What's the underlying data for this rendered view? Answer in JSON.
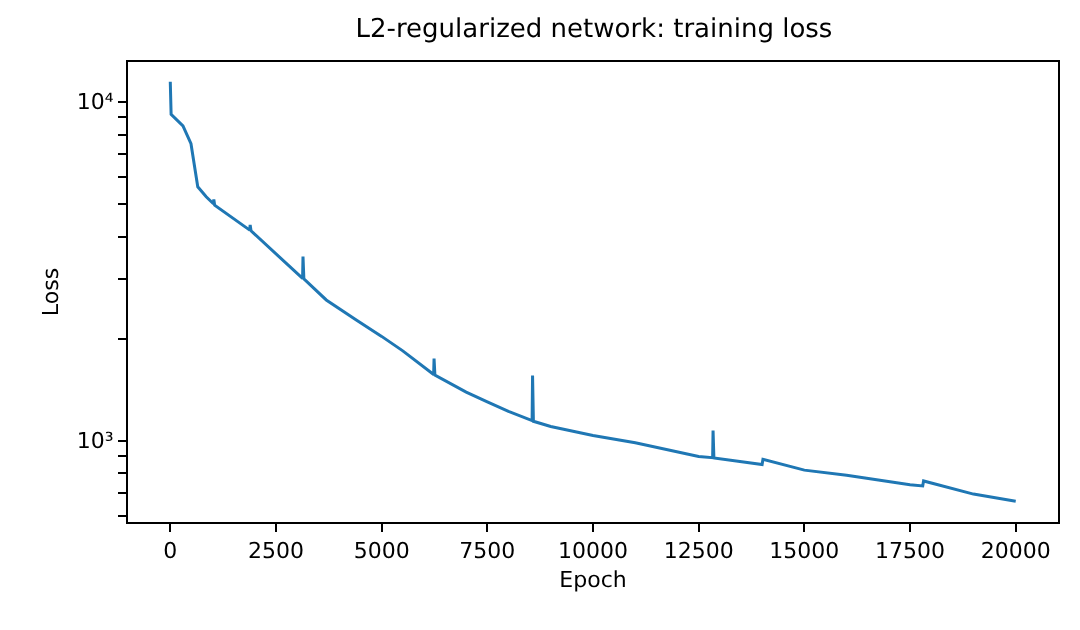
{
  "chart_data": {
    "type": "line",
    "title": "L2-regularized network: training loss",
    "xlabel": "Epoch",
    "ylabel": "Loss",
    "series": [
      {
        "color": "#1f77b4",
        "x": [
          0,
          20,
          300,
          490,
          650,
          850,
          1020,
          1030,
          1050,
          1880,
          1890,
          1910,
          3130,
          3140,
          3160,
          3690,
          4400,
          5000,
          5500,
          6230,
          6240,
          6260,
          7000,
          7500,
          8000,
          8560,
          8570,
          8590,
          9000,
          10000,
          11000,
          12500,
          12830,
          12840,
          12860,
          14000,
          14020,
          15000,
          16000,
          17500,
          17800,
          17820,
          19000,
          20000
        ],
        "values": [
          11450,
          9180,
          8490,
          7520,
          5610,
          5240,
          5000,
          5150,
          4950,
          4180,
          4330,
          4160,
          3010,
          3490,
          3000,
          2600,
          2270,
          2030,
          1840,
          1566,
          1745,
          1560,
          1390,
          1300,
          1220,
          1145,
          1555,
          1140,
          1100,
          1035,
          985,
          897,
          890,
          1070,
          888,
          850,
          880,
          818,
          790,
          741,
          735,
          760,
          695,
          662
        ]
      }
    ],
    "xlim": [
      -1000,
      21000
    ],
    "xticks": [
      0,
      2500,
      5000,
      7500,
      10000,
      12500,
      15000,
      17500,
      20000
    ],
    "ylim": [
      575,
      13100
    ],
    "log": true,
    "yticks": [
      {
        "value": 600,
        "label": null
      },
      {
        "value": 700,
        "label": null
      },
      {
        "value": 800,
        "label": null
      },
      {
        "value": 900,
        "label": null
      },
      {
        "value": 1000,
        "label": "10³"
      },
      {
        "value": 2000,
        "label": null
      },
      {
        "value": 3000,
        "label": null
      },
      {
        "value": 4000,
        "label": null
      },
      {
        "value": 5000,
        "label": null
      },
      {
        "value": 6000,
        "label": null
      },
      {
        "value": 7000,
        "label": null
      },
      {
        "value": 8000,
        "label": null
      },
      {
        "value": 9000,
        "label": null
      },
      {
        "value": 10000,
        "label": "10⁴"
      }
    ],
    "line_style": "solid",
    "marker": "none"
  }
}
